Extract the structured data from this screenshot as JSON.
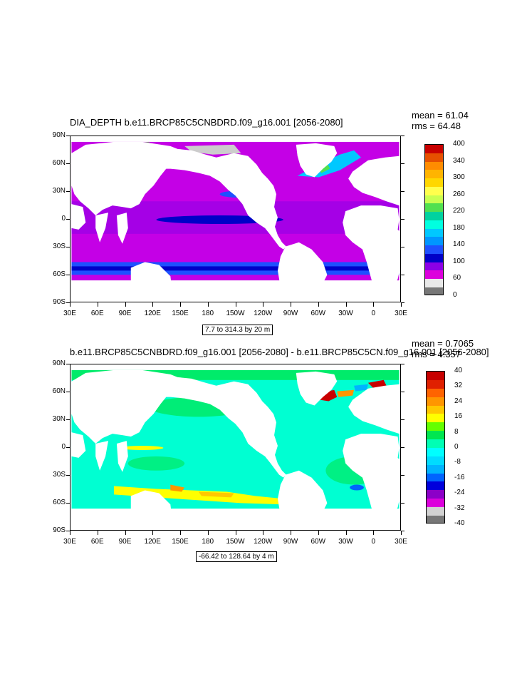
{
  "colors": {
    "land": "#ffffff",
    "grey_light": "#cccccc",
    "grey_dark": "#777777"
  },
  "x_tick_labels": [
    "30E",
    "60E",
    "90E",
    "120E",
    "150E",
    "180",
    "150W",
    "120W",
    "90W",
    "60W",
    "30W",
    "0",
    "30E"
  ],
  "y_tick_labels": [
    "90N",
    "60N",
    "30N",
    "0",
    "30S",
    "60S",
    "90S"
  ],
  "chart_data": [
    {
      "type": "heatmap",
      "title": "DIA_DEPTH b.e11.BRCP85C5CNBDRD.f09_g16.001 [2056-2080]",
      "mean_label": "mean = 61.04",
      "rms_label": "rms = 64.48",
      "mean": 61.04,
      "rms": 64.48,
      "range_label": "7.7 to 314.3 by 20 m",
      "colorbar_labels": [
        "400",
        "340",
        "300",
        "260",
        "220",
        "180",
        "140",
        "100",
        "60",
        "0"
      ],
      "colorbar_colors": [
        "#c80000",
        "#e65000",
        "#ff8c00",
        "#ffb400",
        "#ffd700",
        "#ffff4d",
        "#c8ff50",
        "#50e050",
        "#00d2a0",
        "#00ffe0",
        "#00c8ff",
        "#0096ff",
        "#1e50ff",
        "#0000c8",
        "#8c00e6",
        "#dc00dc",
        "#e8e8e8",
        "#777777"
      ],
      "ocean_base_color": "#c400e6",
      "xlim": [
        30,
        390
      ],
      "ylim": [
        -90,
        90
      ]
    },
    {
      "type": "heatmap",
      "title": "b.e11.BRCP85C5CNBDRD.f09_g16.001 [2056-2080] - b.e11.BRCP85C5CN.f09_g16.001 [2056-2080]",
      "mean_label": "mean = 0.7065",
      "rms_label": "rms = 4.357",
      "mean": 0.7065,
      "rms": 4.357,
      "range_label": "-66.42 to 128.64 by 4 m",
      "colorbar_labels": [
        "40",
        "32",
        "24",
        "16",
        "8",
        "0",
        "-8",
        "-16",
        "-24",
        "-32",
        "-40"
      ],
      "colorbar_colors": [
        "#c80000",
        "#e02000",
        "#ff6400",
        "#ff9600",
        "#ffc800",
        "#ffff00",
        "#64ff00",
        "#00e650",
        "#00ffb4",
        "#00ffff",
        "#00dcff",
        "#00b4ff",
        "#0064ff",
        "#0000dc",
        "#8c00c8",
        "#dc00dc",
        "#d2d2d2",
        "#777777"
      ],
      "ocean_base_color": "#00ffd2",
      "xlim": [
        30,
        390
      ],
      "ylim": [
        -90,
        90
      ]
    }
  ]
}
